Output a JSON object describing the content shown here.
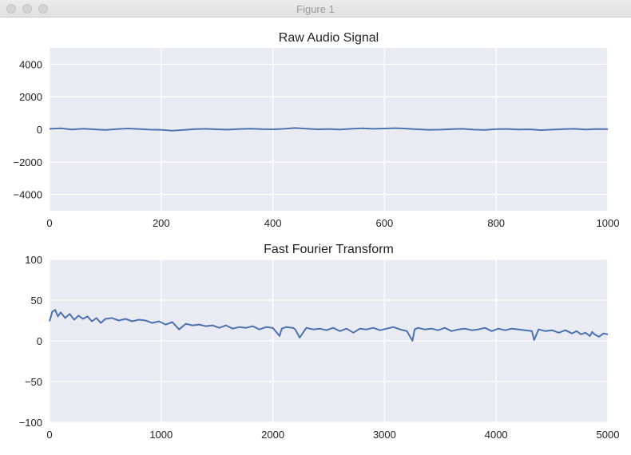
{
  "window": {
    "title": "Figure 1"
  },
  "colors": {
    "axes_bg": "#eaeaf2",
    "grid": "#ffffff",
    "line": "#4c72b0"
  },
  "chart_data": [
    {
      "type": "line",
      "title": "Raw Audio Signal",
      "xlabel": "",
      "ylabel": "",
      "xlim": [
        0,
        1000
      ],
      "ylim": [
        -5000,
        5000
      ],
      "xticks": [
        0,
        200,
        400,
        600,
        800,
        1000
      ],
      "yticks": [
        -4000,
        -2000,
        0,
        2000,
        4000
      ],
      "xtick_labels": [
        "0",
        "200",
        "400",
        "600",
        "800",
        "1000"
      ],
      "ytick_labels": [
        "−4000",
        "−2000",
        "0",
        "2000",
        "4000"
      ],
      "grid": true,
      "series": [
        {
          "x": [
            0,
            20,
            40,
            60,
            80,
            100,
            120,
            140,
            160,
            180,
            200,
            220,
            240,
            260,
            280,
            300,
            320,
            340,
            360,
            380,
            400,
            420,
            440,
            460,
            480,
            500,
            520,
            540,
            560,
            580,
            600,
            620,
            640,
            660,
            680,
            700,
            720,
            740,
            760,
            780,
            800,
            820,
            840,
            860,
            880,
            900,
            920,
            940,
            960,
            980,
            1000
          ],
          "y": [
            30,
            60,
            -10,
            40,
            0,
            -40,
            10,
            50,
            20,
            -20,
            -30,
            -80,
            -40,
            10,
            30,
            0,
            -20,
            20,
            40,
            10,
            0,
            30,
            80,
            40,
            0,
            20,
            -10,
            30,
            60,
            30,
            50,
            70,
            40,
            0,
            -30,
            -20,
            10,
            30,
            -20,
            -40,
            10,
            20,
            -10,
            0,
            -50,
            -20,
            10,
            30,
            -10,
            20,
            10
          ]
        }
      ]
    },
    {
      "type": "line",
      "title": "Fast Fourier Transform",
      "xlabel": "",
      "ylabel": "",
      "xlim": [
        0,
        5000
      ],
      "ylim": [
        -100,
        100
      ],
      "xticks": [
        0,
        1000,
        2000,
        3000,
        4000,
        5000
      ],
      "yticks": [
        -100,
        -50,
        0,
        50,
        100
      ],
      "xtick_labels": [
        "0",
        "1000",
        "2000",
        "3000",
        "4000",
        "5000"
      ],
      "ytick_labels": [
        "−100",
        "−50",
        "0",
        "50",
        "100"
      ],
      "grid": true,
      "series": [
        {
          "x": [
            0,
            25,
            50,
            75,
            100,
            140,
            180,
            220,
            260,
            300,
            340,
            380,
            420,
            460,
            500,
            560,
            620,
            680,
            740,
            800,
            860,
            920,
            980,
            1040,
            1100,
            1160,
            1220,
            1280,
            1340,
            1400,
            1460,
            1520,
            1580,
            1640,
            1700,
            1760,
            1820,
            1880,
            1940,
            2000,
            2060,
            2080,
            2120,
            2180,
            2200,
            2240,
            2300,
            2360,
            2420,
            2480,
            2540,
            2600,
            2660,
            2720,
            2780,
            2840,
            2900,
            2960,
            3020,
            3080,
            3140,
            3200,
            3250,
            3270,
            3300,
            3360,
            3420,
            3480,
            3540,
            3600,
            3660,
            3720,
            3780,
            3840,
            3900,
            3960,
            4020,
            4080,
            4140,
            4200,
            4260,
            4320,
            4340,
            4380,
            4440,
            4500,
            4560,
            4620,
            4680,
            4720,
            4760,
            4800,
            4840,
            4860,
            4880,
            4920,
            4960,
            5000
          ],
          "y": [
            24,
            36,
            38,
            30,
            35,
            28,
            33,
            26,
            31,
            27,
            30,
            24,
            28,
            22,
            27,
            28,
            25,
            27,
            24,
            26,
            25,
            22,
            24,
            20,
            23,
            14,
            21,
            19,
            20,
            18,
            19,
            16,
            19,
            15,
            17,
            16,
            18,
            14,
            17,
            16,
            6,
            15,
            17,
            16,
            14,
            4,
            16,
            14,
            15,
            13,
            16,
            12,
            15,
            10,
            15,
            14,
            16,
            13,
            15,
            17,
            14,
            12,
            0,
            14,
            16,
            14,
            15,
            13,
            16,
            12,
            14,
            15,
            13,
            14,
            16,
            12,
            15,
            13,
            15,
            14,
            13,
            12,
            1,
            14,
            12,
            13,
            10,
            13,
            9,
            12,
            8,
            10,
            6,
            11,
            8,
            5,
            9,
            8
          ]
        }
      ]
    }
  ]
}
